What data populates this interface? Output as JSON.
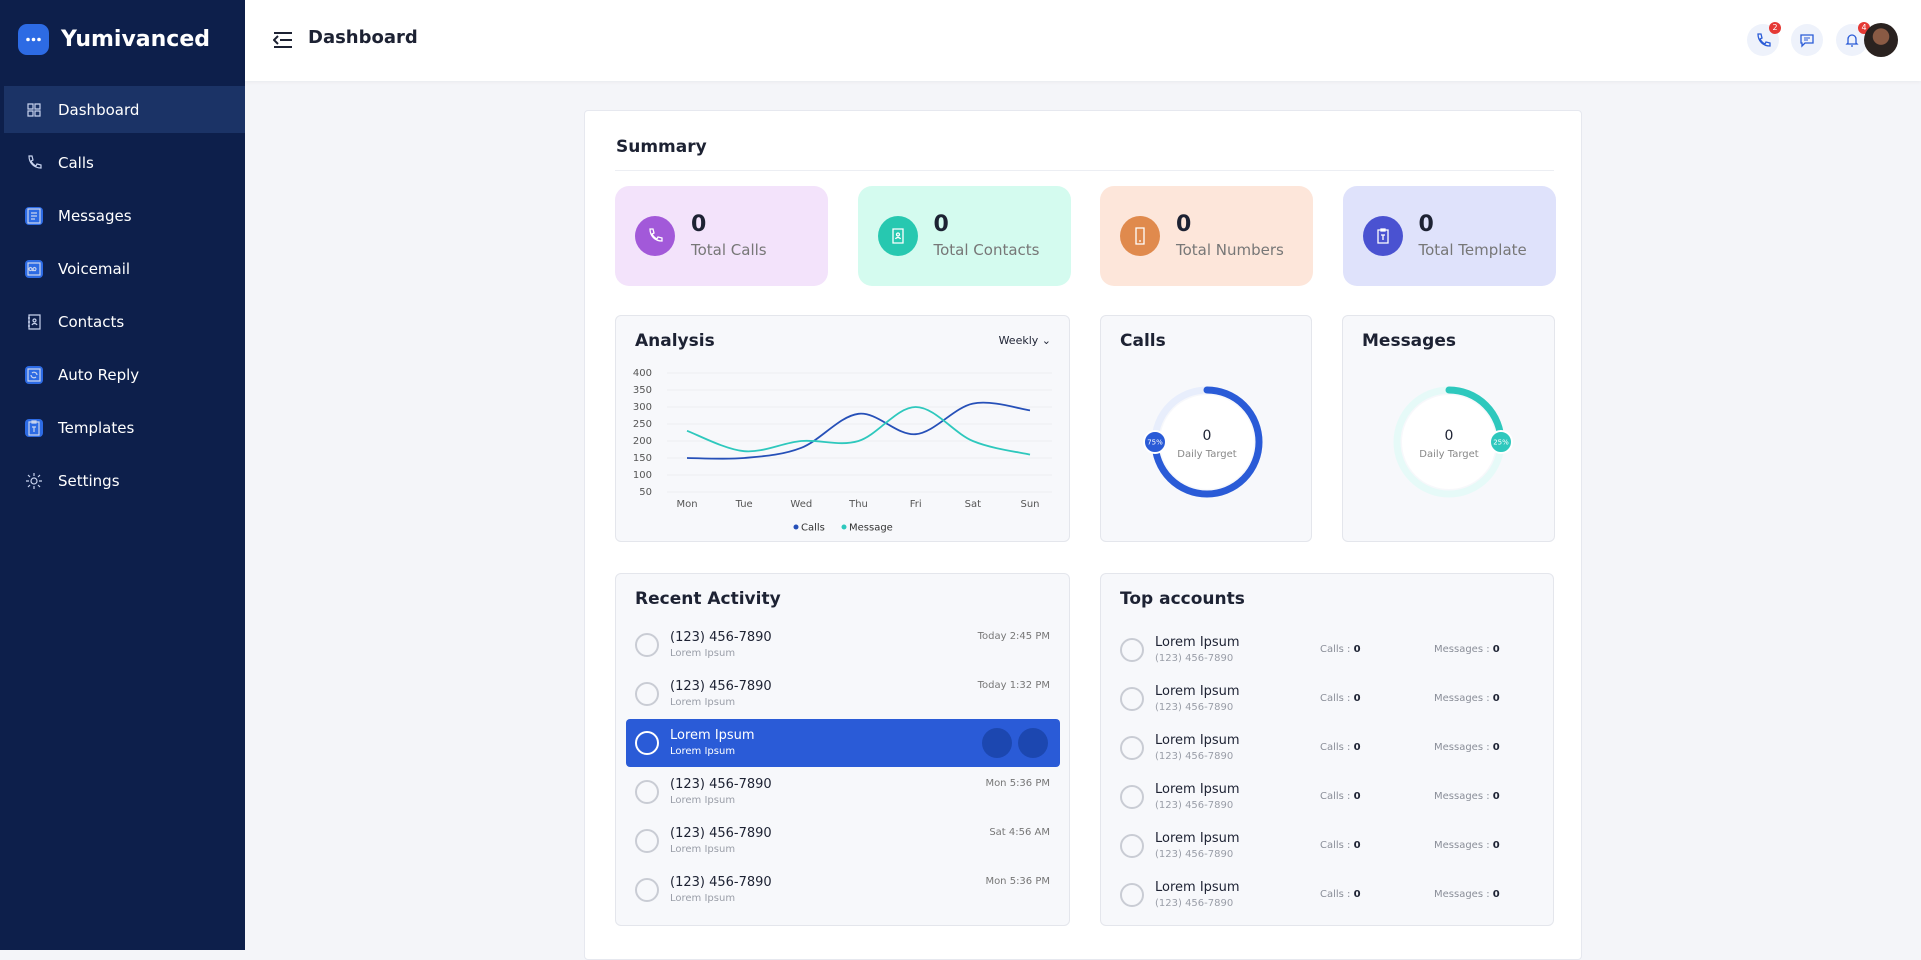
{
  "sidebar": {
    "brand": "Yumivanced",
    "items": [
      "Dashboard",
      "Calls",
      "Messages",
      "Voicemail",
      "Contacts",
      "Auto Reply",
      "Templates",
      "Settings"
    ]
  },
  "header": {
    "title": "Dashboard",
    "call_badge": 2,
    "notification_badge": 4
  },
  "summary": {
    "title": "Summary",
    "stats": [
      {
        "value": 0,
        "label": "Total Calls"
      },
      {
        "value": 0,
        "label": "Total Contacts"
      },
      {
        "value": 0,
        "label": "Total Numbers"
      },
      {
        "value": 0,
        "label": "Total Template"
      }
    ]
  },
  "analysis": {
    "period": "Weekly"
  },
  "chart_data": {
    "type": "line",
    "title": "Analysis",
    "categories": [
      "Mon",
      "Tue",
      "Wed",
      "Thu",
      "Fri",
      "Sat",
      "Sun"
    ],
    "series": [
      {
        "name": "Calls",
        "color": "#2650b8",
        "values": [
          150,
          150,
          180,
          280,
          220,
          310,
          290
        ]
      },
      {
        "name": "Message",
        "color": "#2ec8bd",
        "values": [
          230,
          170,
          200,
          200,
          300,
          200,
          160
        ]
      }
    ],
    "ylim": [
      50,
      400
    ],
    "yticks": [
      50,
      100,
      150,
      200,
      250,
      300,
      350,
      400
    ],
    "grid": true
  },
  "calls_card": {
    "title": "Calls",
    "count": 0,
    "caption": "Daily Target",
    "percent": 75,
    "percent_label": "75%",
    "color": "#2a5bd7",
    "track": "#e8eefc"
  },
  "messages_card": {
    "title": "Messages",
    "count": 0,
    "caption": "Daily Target",
    "percent": 25,
    "percent_label": "25%",
    "color": "#2ec8bd",
    "track": "#e6faf8"
  },
  "recent_activity": {
    "title": "Recent Activity",
    "items": [
      {
        "name": "(123) 456-7890",
        "sub": "Lorem Ipsum",
        "time": "Today 2:45 PM"
      },
      {
        "name": "(123) 456-7890",
        "sub": "Lorem Ipsum",
        "time": "Today 1:32 PM"
      },
      {
        "name": "Lorem Ipsum",
        "sub": "Lorem Ipsum",
        "selected": true
      },
      {
        "name": "(123) 456-7890",
        "sub": "Lorem Ipsum",
        "time": "Mon 5:36 PM"
      },
      {
        "name": "(123) 456-7890",
        "sub": "Lorem Ipsum",
        "time": "Sat 4:56 AM"
      },
      {
        "name": "(123) 456-7890",
        "sub": "Lorem Ipsum",
        "time": "Mon 5:36 PM"
      }
    ]
  },
  "top_accounts": {
    "title": "Top accounts",
    "calls_label": "Calls :",
    "messages_label": "Messages :",
    "items": [
      {
        "name": "Lorem Ipsum",
        "phone": "(123) 456-7890",
        "calls": 0,
        "messages": 0
      },
      {
        "name": "Lorem Ipsum",
        "phone": "(123) 456-7890",
        "calls": 0,
        "messages": 0
      },
      {
        "name": "Lorem Ipsum",
        "phone": "(123) 456-7890",
        "calls": 0,
        "messages": 0
      },
      {
        "name": "Lorem Ipsum",
        "phone": "(123) 456-7890",
        "calls": 0,
        "messages": 0
      },
      {
        "name": "Lorem Ipsum",
        "phone": "(123) 456-7890",
        "calls": 0,
        "messages": 0
      },
      {
        "name": "Lorem Ipsum",
        "phone": "(123) 456-7890",
        "calls": 0,
        "messages": 0
      }
    ]
  }
}
